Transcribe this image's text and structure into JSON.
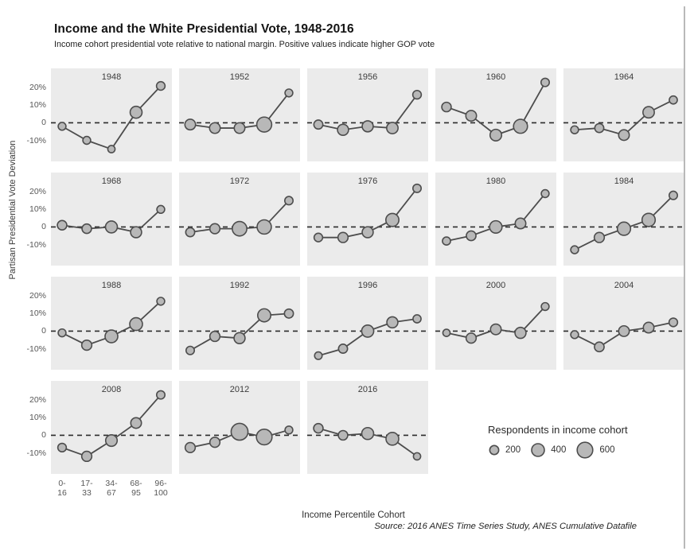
{
  "header": {
    "title": "Income and the White Presidential Vote, 1948-2016",
    "subtitle": "Income cohort presidential vote relative to national margin. Positive values indicate higher GOP vote"
  },
  "axes": {
    "y_title": "Partisan Presidential Vote Deviation",
    "x_title": "Income Percentile Cohort",
    "y_tick_labels": [
      "20%",
      "10%",
      "0",
      "-10%"
    ],
    "y_tick_values": [
      20,
      10,
      0,
      -10
    ],
    "x_tick_labels": [
      "0-\n16",
      "17-\n33",
      "34-\n67",
      "68-\n95",
      "96-\n100"
    ]
  },
  "legend": {
    "title": "Respondents in income cohort",
    "sizes": [
      200,
      400,
      600
    ]
  },
  "source": "Source: 2016 ANES Time Series Study, ANES Cumulative Datafile",
  "colors": {
    "panel_bg": "#ebebeb",
    "marker_fill": "#b8b8b8",
    "stroke": "#4d4d4d",
    "zero_line": "#2b2b2b"
  },
  "chart_data": {
    "type": "line",
    "description": "Small-multiples bubble-line chart; one facet per election year, points sized by respondents in income cohort",
    "categories": [
      "0-16",
      "17-33",
      "34-67",
      "68-95",
      "96-100"
    ],
    "xlabel": "Income Percentile Cohort",
    "ylabel": "Partisan Presidential Vote Deviation",
    "ylim": [
      -22,
      31
    ],
    "zero_reference_line": 0,
    "grid": false,
    "legend_position": "bottom-right",
    "facets": [
      {
        "year": "1948",
        "values": [
          -2,
          -10,
          -15,
          6,
          21
        ],
        "respondents": [
          150,
          150,
          130,
          350,
          180
        ]
      },
      {
        "year": "1952",
        "values": [
          -1,
          -3,
          -3,
          -1,
          17
        ],
        "respondents": [
          280,
          280,
          280,
          550,
          150
        ]
      },
      {
        "year": "1956",
        "values": [
          -1,
          -4,
          -2,
          -3,
          16
        ],
        "respondents": [
          200,
          300,
          300,
          320,
          180
        ]
      },
      {
        "year": "1960",
        "values": [
          9,
          4,
          -7,
          -2,
          23
        ],
        "respondents": [
          220,
          280,
          330,
          480,
          170
        ]
      },
      {
        "year": "1964",
        "values": [
          -4,
          -3,
          -7,
          6,
          13
        ],
        "respondents": [
          150,
          200,
          280,
          320,
          160
        ]
      },
      {
        "year": "1968",
        "values": [
          1,
          -1,
          0,
          -3,
          10
        ],
        "respondents": [
          220,
          220,
          350,
          300,
          150
        ]
      },
      {
        "year": "1972",
        "values": [
          -3,
          -1,
          -1,
          0,
          15
        ],
        "respondents": [
          200,
          250,
          520,
          500,
          170
        ]
      },
      {
        "year": "1976",
        "values": [
          -6,
          -6,
          -3,
          4,
          22
        ],
        "respondents": [
          180,
          250,
          300,
          420,
          170
        ]
      },
      {
        "year": "1980",
        "values": [
          -8,
          -5,
          0,
          2,
          19
        ],
        "respondents": [
          160,
          230,
          380,
          280,
          150
        ]
      },
      {
        "year": "1984",
        "values": [
          -13,
          -6,
          -1,
          4,
          18
        ],
        "respondents": [
          150,
          250,
          430,
          430,
          170
        ]
      },
      {
        "year": "1988",
        "values": [
          -1,
          -8,
          -3,
          4,
          17
        ],
        "respondents": [
          150,
          250,
          400,
          400,
          150
        ]
      },
      {
        "year": "1992",
        "values": [
          -11,
          -3,
          -4,
          9,
          10
        ],
        "respondents": [
          170,
          250,
          300,
          420,
          200
        ]
      },
      {
        "year": "1996",
        "values": [
          -14,
          -10,
          0,
          5,
          7
        ],
        "respondents": [
          140,
          200,
          360,
          300,
          160
        ]
      },
      {
        "year": "2000",
        "values": [
          -1,
          -4,
          1,
          -1,
          14
        ],
        "respondents": [
          130,
          250,
          280,
          300,
          150
        ]
      },
      {
        "year": "2004",
        "values": [
          -2,
          -9,
          0,
          2,
          5
        ],
        "respondents": [
          150,
          230,
          280,
          280,
          180
        ]
      },
      {
        "year": "2008",
        "values": [
          -7,
          -12,
          -3,
          7,
          23
        ],
        "respondents": [
          180,
          250,
          330,
          280,
          170
        ]
      },
      {
        "year": "2012",
        "values": [
          -7,
          -4,
          2,
          -1,
          3
        ],
        "respondents": [
          250,
          250,
          700,
          600,
          150
        ]
      },
      {
        "year": "2016",
        "values": [
          4,
          0,
          1,
          -2,
          -12
        ],
        "respondents": [
          220,
          220,
          350,
          400,
          130
        ]
      }
    ]
  }
}
